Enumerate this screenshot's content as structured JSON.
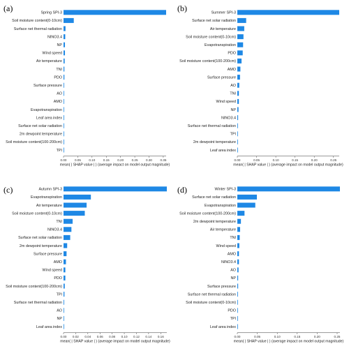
{
  "chart_data": [
    {
      "type": "bar",
      "panel_label": "(a)",
      "categories": [
        "Spring SPI-3",
        "Soil moisture content(0-10cm)",
        "Surface net thermal radiation",
        "NINO3.4",
        "NP",
        "Wind speed",
        "Air temperature",
        "TNI",
        "PDO",
        "Surface pressure",
        "AO",
        "AMO",
        "Evapotranspiration",
        "Leaf area index",
        "Surface net solar radiation",
        "2m dewpoint temperature",
        "Soil moisture content(100-200cm)",
        "TPI"
      ],
      "values": [
        0.36,
        0.036,
        0.007,
        0.006,
        0.005,
        0.005,
        0.004,
        0.003,
        0.003,
        0.002,
        0.002,
        0.0015,
        0.001,
        0.0008,
        0.0006,
        0.0005,
        0.0004,
        0.0003
      ],
      "xlim": [
        0,
        0.36
      ],
      "xticks": [
        "0.00",
        "0.05",
        "0.10",
        "0.15",
        "0.20",
        "0.25",
        "0.30",
        "0.35"
      ],
      "tick_values": [
        0,
        0.05,
        0.1,
        0.15,
        0.2,
        0.25,
        0.3,
        0.35
      ],
      "xlabel": "mean( | SHAP value | ) (average impact on model output magnitude)"
    },
    {
      "type": "bar",
      "panel_label": "(b)",
      "categories": [
        "Summer SPI-3",
        "Surface net solar radiation",
        "Air temperature",
        "Soil moisture content(0-10cm)",
        "Evapotranspiration",
        "PDO",
        "Soil moisture content(100-200cm)",
        "AMO",
        "Surface pressure",
        "AO",
        "TNI",
        "Wind speed",
        "NP",
        "NINO3.4",
        "Surface net thermal radiation",
        "TPI",
        "2m dewpoint temperature",
        "Leaf area index"
      ],
      "values": [
        0.265,
        0.023,
        0.018,
        0.016,
        0.015,
        0.014,
        0.011,
        0.008,
        0.007,
        0.005,
        0.004,
        0.004,
        0.003,
        0.002,
        0.0015,
        0.001,
        0.0008,
        0.0005
      ],
      "xlim": [
        0,
        0.265
      ],
      "xticks": [
        "0.00",
        "0.05",
        "0.10",
        "0.15",
        "0.20",
        "0.25"
      ],
      "tick_values": [
        0,
        0.05,
        0.1,
        0.15,
        0.2,
        0.25
      ],
      "xlabel": "mean( | SHAP value | ) (average impact on model output magnitude)"
    },
    {
      "type": "bar",
      "panel_label": "(c)",
      "categories": [
        "Autumn SPI-3",
        "Evapotranspiration",
        "Air temperature",
        "Soil moisture content(0-10cm)",
        "TNI",
        "NINO3.4",
        "Surface net solar radiation",
        "2m dewpoint temperature",
        "Surface pressure",
        "AMO",
        "Wind speed",
        "PDO",
        "Soil moisture content(100-200cm)",
        "TPI",
        "Surface net thermal radiation",
        "AO",
        "NP",
        "Leaf area index"
      ],
      "values": [
        0.17,
        0.045,
        0.038,
        0.035,
        0.015,
        0.013,
        0.011,
        0.006,
        0.005,
        0.004,
        0.003,
        0.003,
        0.002,
        0.0015,
        0.001,
        0.0008,
        0.0006,
        0.0004
      ],
      "xlim": [
        0,
        0.17
      ],
      "xticks": [
        "0.00",
        "0.02",
        "0.04",
        "0.06",
        "0.08",
        "0.10",
        "0.12",
        "0.14",
        "0.16"
      ],
      "tick_values": [
        0,
        0.02,
        0.04,
        0.06,
        0.08,
        0.1,
        0.12,
        0.14,
        0.16
      ],
      "xlabel": "mean( | SHAP value | ) (average impact on model output magnitude)"
    },
    {
      "type": "bar",
      "panel_label": "(d)",
      "categories": [
        "Winter SPI-3",
        "Surface net solar radiation",
        "Evapotranspiration",
        "Soil moisture content(100-200cm)",
        "2m dewpoint temperature",
        "Air temperature",
        "TNI",
        "Wind speed",
        "AMO",
        "NINO3.4",
        "AO",
        "NP",
        "Surface pressure",
        "Surface net thermal radiation",
        "Soil moisture content(0-10cm)",
        "PDO",
        "TPI",
        "Leaf area index"
      ],
      "values": [
        0.257,
        0.049,
        0.045,
        0.018,
        0.009,
        0.007,
        0.006,
        0.005,
        0.004,
        0.004,
        0.003,
        0.002,
        0.002,
        0.0015,
        0.001,
        0.0008,
        0.0005,
        0.0003
      ],
      "xlim": [
        0,
        0.257
      ],
      "xticks": [
        "0.00",
        "0.05",
        "0.10",
        "0.15",
        "0.20",
        "0.25"
      ],
      "tick_values": [
        0,
        0.05,
        0.1,
        0.15,
        0.2,
        0.25
      ],
      "xlabel": "mean( | SHAP value | ) (average impact on model output magnitude)"
    }
  ],
  "colors": {
    "bar": "#1e88e5",
    "axis": "#333333"
  }
}
